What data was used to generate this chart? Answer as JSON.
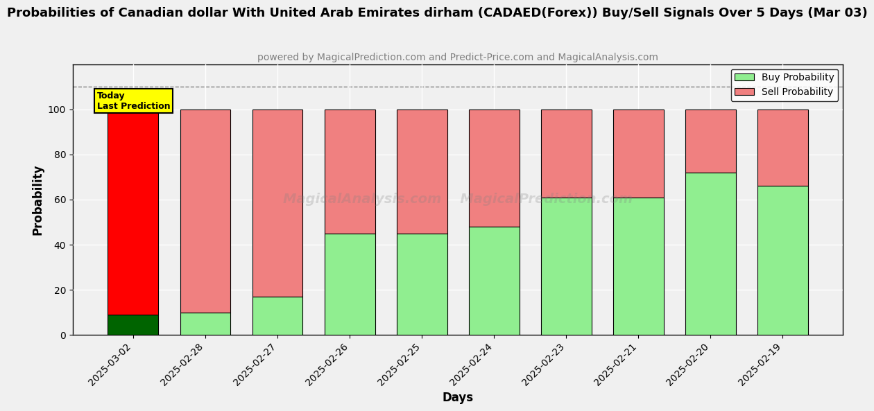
{
  "title": "Probabilities of Canadian dollar With United Arab Emirates dirham (CADAED(Forex)) Buy/Sell Signals Over 5 Days (Mar 03)",
  "subtitle": "powered by MagicalPrediction.com and Predict-Price.com and MagicalAnalysis.com",
  "xlabel": "Days",
  "ylabel": "Probability",
  "watermark": "MagicalAnalysis.com    MagicalPrediction.com",
  "categories": [
    "2025-03-02",
    "2025-02-28",
    "2025-02-27",
    "2025-02-26",
    "2025-02-25",
    "2025-02-24",
    "2025-02-23",
    "2025-02-21",
    "2025-02-20",
    "2025-02-19"
  ],
  "buy_values": [
    9,
    10,
    17,
    45,
    45,
    48,
    61,
    61,
    72,
    66
  ],
  "sell_values": [
    91,
    90,
    83,
    55,
    55,
    52,
    39,
    39,
    28,
    34
  ],
  "today_index": 0,
  "today_label": "Today\nLast Prediction",
  "buy_color_today": "#006400",
  "sell_color_today": "#FF0000",
  "buy_color_normal": "#90EE90",
  "sell_color_normal": "#F08080",
  "ylim": [
    0,
    120
  ],
  "yticks": [
    0,
    20,
    40,
    60,
    80,
    100
  ],
  "grid_color": "#FFFFFF",
  "background_color": "#f0f0f0",
  "plot_bg_color": "#f0f0f0",
  "title_fontsize": 13,
  "subtitle_fontsize": 10,
  "axis_label_fontsize": 12,
  "tick_fontsize": 10,
  "legend_fontsize": 10,
  "today_box_color": "#FFFF00",
  "today_box_edge": "#000000",
  "dashed_line_y": 110,
  "dashed_line_color": "#808080"
}
